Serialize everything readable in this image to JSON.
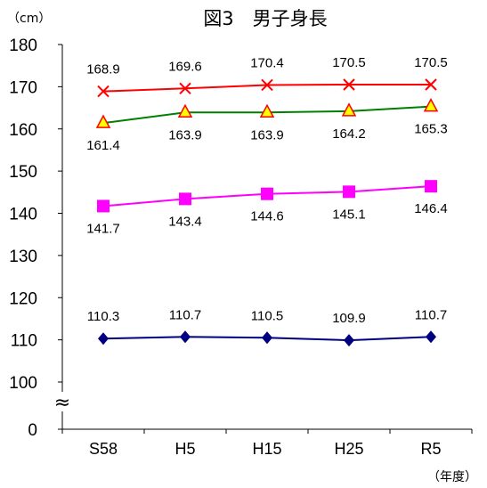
{
  "chart_data": {
    "type": "line",
    "title": "図3　男子身長",
    "y_unit": "（cm）",
    "x_unit": "（年度）",
    "categories": [
      "S58",
      "H5",
      "H15",
      "H25",
      "R5"
    ],
    "y_ticks": [
      "180",
      "170",
      "160",
      "150",
      "140",
      "130",
      "120",
      "110",
      "100",
      "0"
    ],
    "ylim": [
      100,
      180
    ],
    "axis_break": "≈",
    "grid": false,
    "series": [
      {
        "values": [
          168.9,
          169.6,
          170.4,
          170.5,
          170.5
        ],
        "color": "#ff0000",
        "marker": "x-mark",
        "label_position": "above"
      },
      {
        "values": [
          161.4,
          163.9,
          163.9,
          164.2,
          165.3
        ],
        "color": "#008000",
        "marker": "triangle",
        "marker_fill": "#ffff00",
        "marker_stroke": "#ff0000",
        "label_position": "below"
      },
      {
        "values": [
          141.7,
          143.4,
          144.6,
          145.1,
          146.4
        ],
        "color": "#ff00ff",
        "marker": "square",
        "label_position": "below"
      },
      {
        "values": [
          110.3,
          110.7,
          110.5,
          109.9,
          110.7
        ],
        "color": "#000080",
        "marker": "diamond",
        "label_position": "above"
      }
    ]
  }
}
